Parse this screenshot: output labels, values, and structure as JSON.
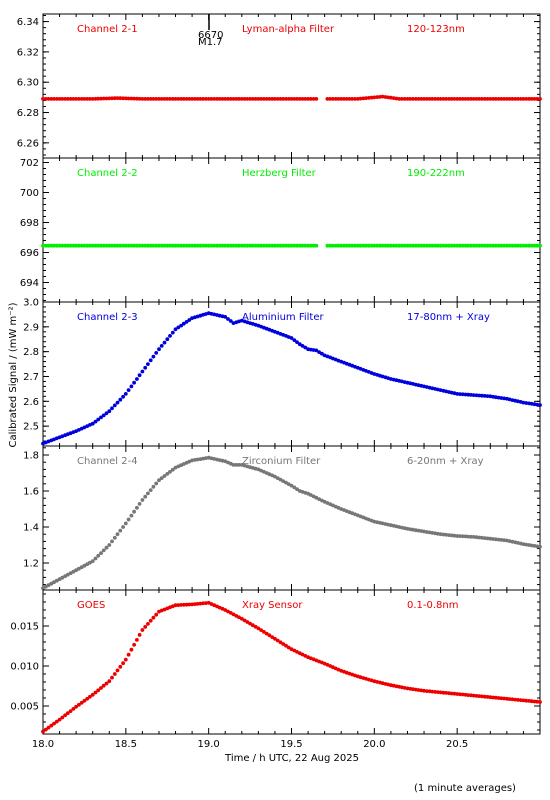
{
  "figure": {
    "xlabel": "Time / h UTC, 22 Aug 2025",
    "ylabel": "Calibrated Signal  / (mW m⁻²)",
    "footnote": "(1 minute averages)",
    "flare_marker": {
      "label_top": "6670",
      "label_bottom": "M1.7",
      "x": 18.97
    }
  },
  "chart_data": [
    {
      "type": "scatter",
      "channel": "Channel 2-1",
      "filter": "Lyman-alpha Filter",
      "band": "120-123nm",
      "color": "#ee0000",
      "xlim": [
        18.0,
        21.0
      ],
      "ylim": [
        6.25,
        6.345
      ],
      "yticks": [
        "6.26",
        "6.28",
        "6.30",
        "6.32",
        "6.34"
      ],
      "x": [
        18.0,
        18.3,
        18.45,
        18.6,
        19.0,
        19.5,
        19.65,
        19.72,
        19.9,
        20.05,
        20.15,
        20.5,
        21.0
      ],
      "y": [
        6.289,
        6.289,
        6.2895,
        6.289,
        6.289,
        6.289,
        6.289,
        6.289,
        6.289,
        6.2905,
        6.289,
        6.289,
        6.289
      ],
      "gap": [
        19.66,
        19.71
      ]
    },
    {
      "type": "scatter",
      "channel": "Channel 2-2",
      "filter": "Herzberg Filter",
      "band": "190-222nm",
      "color": "#00ee00",
      "xlim": [
        18.0,
        21.0
      ],
      "ylim": [
        692.7,
        702.3
      ],
      "yticks": [
        "694",
        "696",
        "698",
        "700",
        "702"
      ],
      "x": [
        18.0,
        18.5,
        19.0,
        19.5,
        20.0,
        20.5,
        21.0
      ],
      "y": [
        696.45,
        696.45,
        696.45,
        696.45,
        696.45,
        696.45,
        696.45
      ],
      "gap": [
        19.66,
        19.71
      ]
    },
    {
      "type": "scatter",
      "channel": "Channel 2-3",
      "filter": "Aluminium Filter",
      "band": "17-80nm + Xray",
      "color": "#0000dd",
      "xlim": [
        18.0,
        21.0
      ],
      "ylim": [
        2.42,
        3.0
      ],
      "yticks": [
        "2.5",
        "2.6",
        "2.7",
        "2.8",
        "2.9",
        "3.0"
      ],
      "x": [
        18.0,
        18.1,
        18.2,
        18.3,
        18.4,
        18.5,
        18.6,
        18.7,
        18.8,
        18.9,
        19.0,
        19.1,
        19.15,
        19.2,
        19.3,
        19.4,
        19.5,
        19.55,
        19.6,
        19.65,
        19.7,
        19.8,
        19.9,
        20.0,
        20.1,
        20.2,
        20.3,
        20.4,
        20.5,
        20.6,
        20.7,
        20.8,
        20.9,
        21.0
      ],
      "y": [
        2.43,
        2.455,
        2.48,
        2.51,
        2.56,
        2.63,
        2.72,
        2.81,
        2.89,
        2.935,
        2.955,
        2.94,
        2.915,
        2.925,
        2.905,
        2.88,
        2.855,
        2.83,
        2.81,
        2.805,
        2.785,
        2.76,
        2.735,
        2.71,
        2.69,
        2.675,
        2.66,
        2.645,
        2.63,
        2.625,
        2.62,
        2.61,
        2.595,
        2.585
      ]
    },
    {
      "type": "scatter",
      "channel": "Channel 2-4",
      "filter": "Zirconium Filter",
      "band": "6-20nm + Xray",
      "color": "#777777",
      "xlim": [
        18.0,
        21.0
      ],
      "ylim": [
        1.05,
        1.85
      ],
      "yticks": [
        "1.2",
        "1.4",
        "1.6",
        "1.8"
      ],
      "x": [
        18.0,
        18.1,
        18.2,
        18.3,
        18.4,
        18.5,
        18.6,
        18.7,
        18.8,
        18.9,
        19.0,
        19.1,
        19.15,
        19.2,
        19.3,
        19.4,
        19.5,
        19.55,
        19.6,
        19.7,
        19.8,
        19.9,
        20.0,
        20.1,
        20.2,
        20.3,
        20.4,
        20.5,
        20.6,
        20.7,
        20.8,
        20.9,
        21.0
      ],
      "y": [
        1.06,
        1.11,
        1.16,
        1.21,
        1.3,
        1.42,
        1.55,
        1.66,
        1.73,
        1.77,
        1.785,
        1.765,
        1.745,
        1.745,
        1.72,
        1.68,
        1.63,
        1.6,
        1.585,
        1.54,
        1.5,
        1.465,
        1.43,
        1.41,
        1.39,
        1.375,
        1.36,
        1.35,
        1.345,
        1.335,
        1.325,
        1.305,
        1.29
      ]
    },
    {
      "type": "scatter",
      "channel": "GOES",
      "filter": "Xray Sensor",
      "band": "0.1-0.8nm",
      "color": "#ee0000",
      "xlim": [
        18.0,
        21.0
      ],
      "ylim": [
        0.0015,
        0.0195
      ],
      "yticks": [
        "0.005",
        "0.010",
        "0.015"
      ],
      "xticks": [
        "18.0",
        "18.5",
        "19.0",
        "19.5",
        "20.0",
        "20.5"
      ],
      "x": [
        18.0,
        18.1,
        18.2,
        18.3,
        18.4,
        18.5,
        18.6,
        18.7,
        18.8,
        18.9,
        19.0,
        19.1,
        19.2,
        19.3,
        19.4,
        19.5,
        19.6,
        19.7,
        19.8,
        19.9,
        20.0,
        20.1,
        20.2,
        20.3,
        20.4,
        20.5,
        20.6,
        20.7,
        20.8,
        20.9,
        21.0
      ],
      "y": [
        0.0018,
        0.0033,
        0.0049,
        0.0064,
        0.0081,
        0.0108,
        0.0145,
        0.0168,
        0.0176,
        0.0177,
        0.0179,
        0.017,
        0.0159,
        0.0147,
        0.0134,
        0.0121,
        0.0111,
        0.0103,
        0.0094,
        0.0087,
        0.0081,
        0.0076,
        0.0072,
        0.0069,
        0.0067,
        0.0065,
        0.0063,
        0.0061,
        0.0059,
        0.0057,
        0.0055
      ]
    }
  ]
}
